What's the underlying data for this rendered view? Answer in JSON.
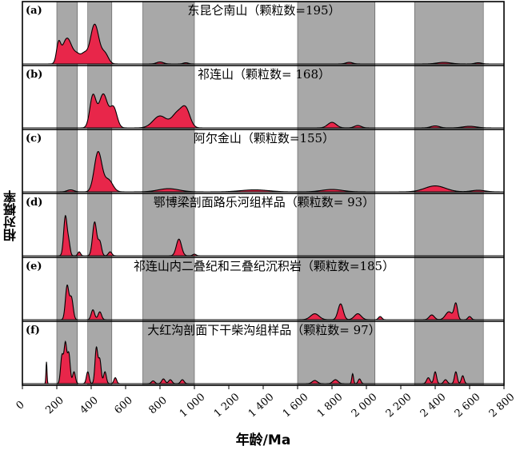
{
  "chart_data": {
    "type": "area",
    "xlabel": "年龄/Ma",
    "ylabel": "相对概率",
    "xlim": [
      0,
      2800
    ],
    "x_ticks": [
      0,
      200,
      400,
      600,
      800,
      1000,
      1200,
      1400,
      1600,
      1800,
      2000,
      2200,
      2400,
      2600,
      2800
    ],
    "x_tick_labels": [
      "0",
      "200",
      "400",
      "600",
      "800",
      "1 000",
      "1 200",
      "1 400",
      "1 600",
      "1 800",
      "2 000",
      "2 200",
      "2 400",
      "2 600",
      "2 800"
    ],
    "shaded_bands": [
      [
        200,
        320
      ],
      [
        380,
        520
      ],
      [
        700,
        1000
      ],
      [
        1600,
        2050
      ],
      [
        2280,
        2680
      ]
    ],
    "fill_color": "#e8264a",
    "band_color": "#a8a8a8",
    "panels": [
      {
        "tag": "(a)",
        "title": "东昆仑南山（颗粒数=195）",
        "peaks": [
          [
            210,
            0.45,
            12
          ],
          [
            260,
            0.65,
            28
          ],
          [
            320,
            0.2,
            20
          ],
          [
            360,
            0.22,
            18
          ],
          [
            420,
            1.0,
            25
          ],
          [
            480,
            0.25,
            20
          ],
          [
            800,
            0.05,
            20
          ],
          [
            950,
            0.03,
            15
          ],
          [
            1900,
            0.04,
            20
          ],
          [
            2450,
            0.04,
            40
          ],
          [
            2650,
            0.03,
            20
          ]
        ]
      },
      {
        "tag": "(b)",
        "title": "祁连山（颗粒数= 168）",
        "peaks": [
          [
            410,
            0.8,
            18
          ],
          [
            470,
            0.85,
            25
          ],
          [
            530,
            0.5,
            20
          ],
          [
            800,
            0.3,
            40
          ],
          [
            900,
            0.35,
            30
          ],
          [
            950,
            0.45,
            25
          ],
          [
            1800,
            0.14,
            25
          ],
          [
            1950,
            0.06,
            20
          ],
          [
            2400,
            0.05,
            25
          ],
          [
            2600,
            0.04,
            40
          ]
        ]
      },
      {
        "tag": "(c)",
        "title": "阿尔金山（颗粒数=155）",
        "peaks": [
          [
            440,
            1.0,
            22
          ],
          [
            500,
            0.3,
            25
          ],
          [
            280,
            0.05,
            20
          ],
          [
            850,
            0.08,
            60
          ],
          [
            1350,
            0.05,
            80
          ],
          [
            1800,
            0.06,
            60
          ],
          [
            2400,
            0.15,
            60
          ],
          [
            2650,
            0.04,
            40
          ]
        ]
      },
      {
        "tag": "(d)",
        "title": "鄂博梁剖面路乐河组样品（颗粒数= 93）",
        "peaks": [
          [
            250,
            1.0,
            10
          ],
          [
            270,
            0.3,
            8
          ],
          [
            420,
            0.85,
            12
          ],
          [
            450,
            0.35,
            10
          ],
          [
            330,
            0.1,
            8
          ],
          [
            510,
            0.1,
            10
          ],
          [
            910,
            0.42,
            15
          ],
          [
            1000,
            0.04,
            10
          ]
        ]
      },
      {
        "tag": "(e)",
        "title": "祁连山内二叠纪和三叠纪沉积岩（颗粒数=185）",
        "peaks": [
          [
            260,
            0.85,
            10
          ],
          [
            285,
            0.55,
            10
          ],
          [
            410,
            0.25,
            10
          ],
          [
            450,
            0.2,
            10
          ],
          [
            1700,
            0.15,
            25
          ],
          [
            1850,
            0.4,
            15
          ],
          [
            1950,
            0.15,
            20
          ],
          [
            2080,
            0.08,
            10
          ],
          [
            2380,
            0.12,
            15
          ],
          [
            2480,
            0.2,
            20
          ],
          [
            2520,
            0.4,
            10
          ],
          [
            2600,
            0.08,
            10
          ]
        ]
      },
      {
        "tag": "(f)",
        "title": "大红沟剖面下干柴沟组样品（颗粒数= 97）",
        "peaks": [
          [
            140,
            0.55,
            3
          ],
          [
            230,
            0.7,
            8
          ],
          [
            250,
            1.0,
            8
          ],
          [
            270,
            0.75,
            8
          ],
          [
            300,
            0.3,
            8
          ],
          [
            380,
            0.3,
            8
          ],
          [
            430,
            0.9,
            8
          ],
          [
            450,
            0.6,
            8
          ],
          [
            480,
            0.3,
            8
          ],
          [
            540,
            0.15,
            8
          ],
          [
            760,
            0.07,
            10
          ],
          [
            820,
            0.12,
            10
          ],
          [
            860,
            0.1,
            10
          ],
          [
            930,
            0.1,
            10
          ],
          [
            1700,
            0.08,
            15
          ],
          [
            1820,
            0.1,
            15
          ],
          [
            1920,
            0.25,
            5
          ],
          [
            1960,
            0.12,
            8
          ],
          [
            2360,
            0.15,
            10
          ],
          [
            2400,
            0.3,
            8
          ],
          [
            2460,
            0.1,
            10
          ],
          [
            2520,
            0.3,
            8
          ],
          [
            2560,
            0.2,
            8
          ]
        ]
      }
    ]
  }
}
